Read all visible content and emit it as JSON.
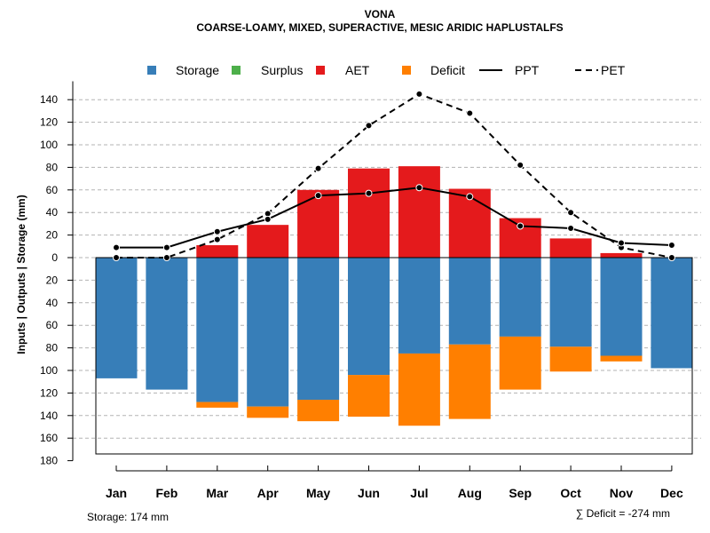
{
  "chart_data": {
    "type": "bar",
    "title": "VONA",
    "subtitle": "COARSE-LOAMY, MIXED, SUPERACTIVE, MESIC ARIDIC HAPLUSTALFS",
    "ylabel": "Inputs | Outputs | Storage    (mm)",
    "ylim": [
      -180,
      150
    ],
    "y_ticks": [
      140,
      120,
      100,
      80,
      60,
      40,
      20,
      0,
      -20,
      -40,
      -60,
      -80,
      -100,
      -120,
      -140,
      -160,
      -180
    ],
    "y_tick_labels": [
      "140",
      "120",
      "100",
      "80",
      "60",
      "40",
      "20",
      "0",
      "20",
      "40",
      "60",
      "80",
      "100",
      "120",
      "140",
      "160",
      "180"
    ],
    "categories": [
      "Jan",
      "Feb",
      "Mar",
      "Apr",
      "May",
      "Jun",
      "Jul",
      "Aug",
      "Sep",
      "Oct",
      "Nov",
      "Dec"
    ],
    "legend": {
      "position": "top",
      "items": [
        {
          "label": "Storage",
          "kind": "box",
          "color": "#377eb8"
        },
        {
          "label": "Surplus",
          "kind": "box",
          "color": "#4daf4a"
        },
        {
          "label": "AET",
          "kind": "box",
          "color": "#e41a1c"
        },
        {
          "label": "Deficit",
          "kind": "box",
          "color": "#ff7f00"
        },
        {
          "label": "PPT",
          "kind": "solid"
        },
        {
          "label": "PET",
          "kind": "dashed"
        }
      ]
    },
    "series": [
      {
        "name": "Storage",
        "color": "#377eb8",
        "values": [
          -107,
          -117,
          -128,
          -132,
          -126,
          -104,
          -85,
          -77,
          -70,
          -79,
          -87,
          -98
        ]
      },
      {
        "name": "Surplus",
        "color": "#4daf4a",
        "values": [
          0,
          0,
          0,
          0,
          0,
          0,
          0,
          0,
          0,
          0,
          0,
          0
        ]
      },
      {
        "name": "AET",
        "color": "#e41a1c",
        "values": [
          0,
          0,
          11,
          29,
          60,
          79,
          81,
          61,
          35,
          17,
          4,
          0
        ]
      },
      {
        "name": "Deficit",
        "color": "#ff7f00",
        "values": [
          0,
          0,
          -5,
          -10,
          -19,
          -37,
          -64,
          -66,
          -47,
          -22,
          -5,
          0
        ]
      },
      {
        "name": "PPT",
        "style": "solid",
        "values": [
          9,
          9,
          23,
          34,
          55,
          57,
          62,
          54,
          28,
          26,
          13,
          11
        ]
      },
      {
        "name": "PET",
        "style": "dashed",
        "values": [
          0,
          0,
          16,
          39,
          79,
          117,
          145,
          128,
          82,
          40,
          9,
          0
        ]
      }
    ],
    "storage_note": "Storage: 174 mm",
    "deficit_note": "∑ Deficit = -274 mm",
    "grid": true
  }
}
